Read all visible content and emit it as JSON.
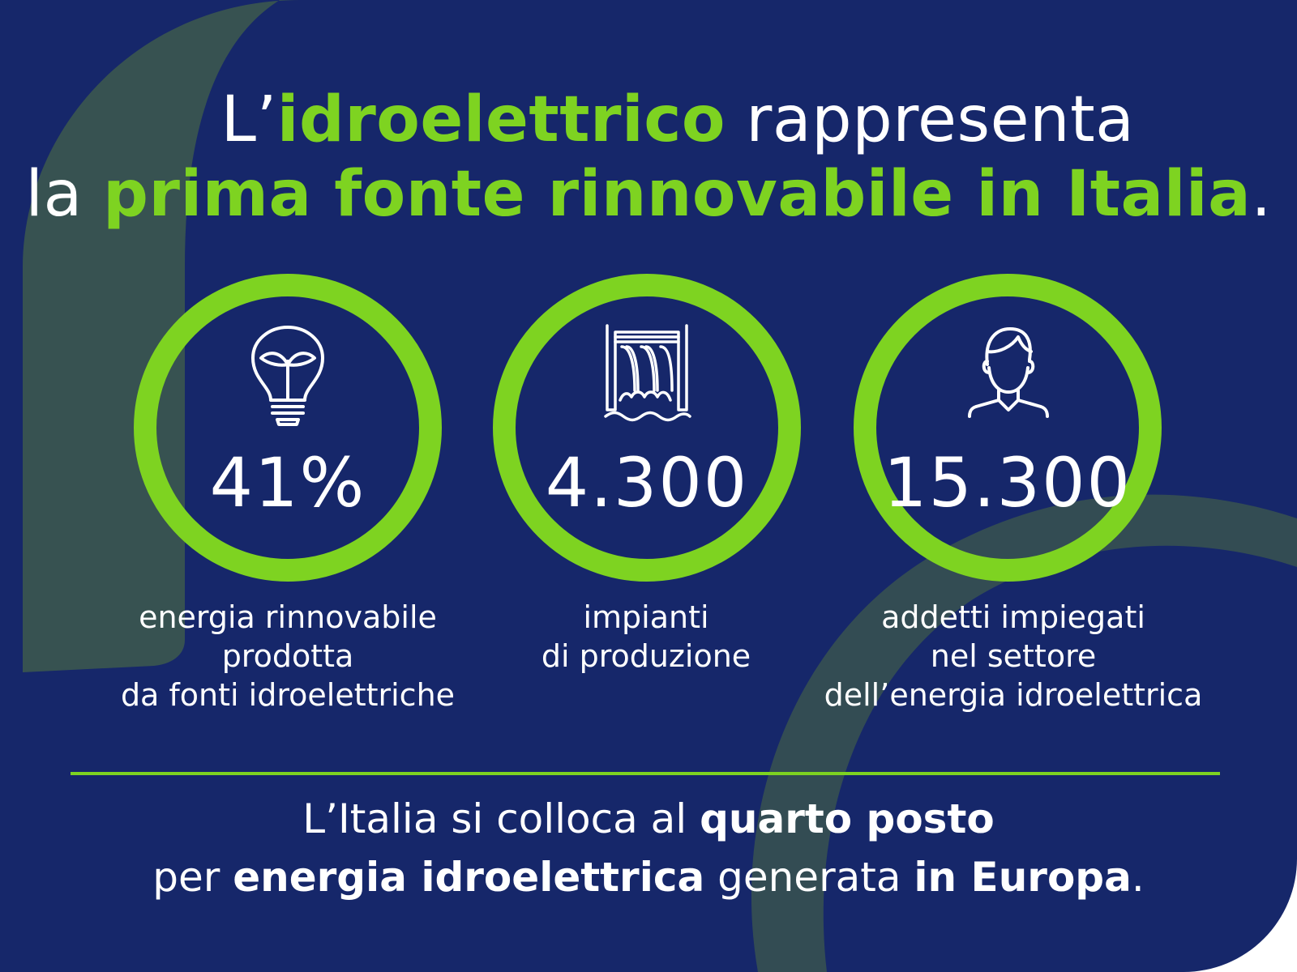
{
  "colors": {
    "background": "#16276a",
    "accent": "#7ed321",
    "text": "#ffffff",
    "decor": "#3d5a4c"
  },
  "headline": {
    "line1": {
      "prefix": "L’",
      "highlight": "idroelettrico",
      "suffix": " rappresenta"
    },
    "line2": {
      "prefix": "la ",
      "highlight": "prima fonte rinnovabile in Italia",
      "suffix": "."
    }
  },
  "stats": [
    {
      "icon": "lightbulb-leaf-icon",
      "value": "41%",
      "label_lines": [
        "energia rinnovabile",
        "prodotta",
        "da fonti idroelettriche"
      ]
    },
    {
      "icon": "dam-waterfall-icon",
      "value": "4.300",
      "label_lines": [
        "impianti",
        "di produzione"
      ]
    },
    {
      "icon": "person-icon",
      "value": "15.300",
      "label_lines": [
        "addetti impiegati",
        "nel settore",
        "dell’energia idroelettrica"
      ]
    }
  ],
  "footer": {
    "line1": {
      "a": "L’Italia si colloca al ",
      "b_bold": "quarto posto"
    },
    "line2": {
      "a": "per ",
      "b_bold": "energia idroelettrica",
      "c": " generata ",
      "d_bold": "in Europa",
      "e": "."
    }
  }
}
